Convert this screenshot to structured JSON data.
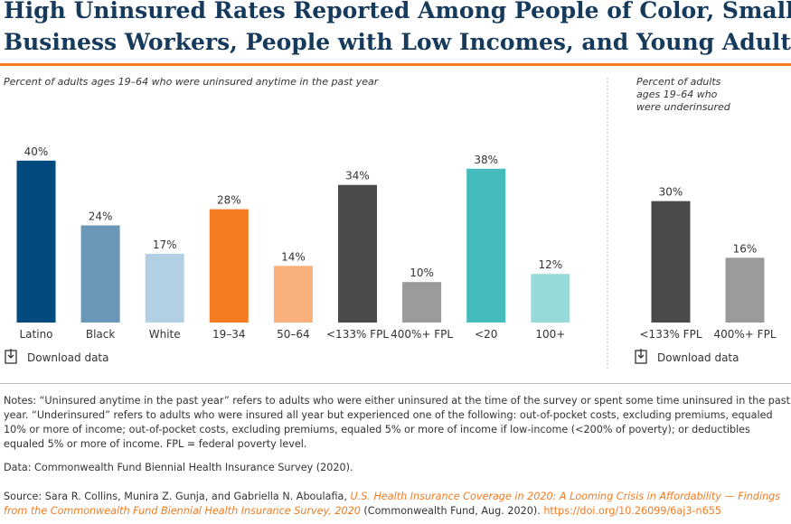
{
  "title": [
    "High Uninsured Rates Reported Among People of Color, Small-",
    "Business Workers, People with Low Incomes, and Young Adults"
  ],
  "chart_data": [
    {
      "type": "bar",
      "subtitle": [
        "Percent of adults ages 19–64 who were uninsured anytime in the past year"
      ],
      "categories": [
        "Latino",
        "Black",
        "White",
        "19–34",
        "50–64",
        "<133% FPL",
        "400%+ FPL",
        "<20",
        "100+"
      ],
      "values": [
        40,
        24,
        17,
        28,
        14,
        34,
        10,
        38,
        12
      ],
      "value_labels": [
        "40%",
        "24%",
        "17%",
        "28%",
        "14%",
        "34%",
        "10%",
        "38%",
        "12%"
      ],
      "colors": [
        "#034a7e",
        "#6a97b8",
        "#b3cfe3",
        "#f47b20",
        "#f9b07a",
        "#4a4a4a",
        "#9b9b9b",
        "#44bbbc",
        "#98dad9"
      ]
    },
    {
      "type": "bar",
      "subtitle": [
        "Percent of adults",
        "ages 19–64 who",
        "were underinsured"
      ],
      "categories": [
        "<133% FPL",
        "400%+ FPL"
      ],
      "values": [
        30,
        16
      ],
      "value_labels": [
        "30%",
        "16%"
      ],
      "colors": [
        "#4a4a4a",
        "#9b9b9b"
      ]
    }
  ],
  "download_links": [
    "Download data",
    "Download data"
  ],
  "notes": "Notes: “Uninsured anytime in the past year” refers to adults who were either uninsured at the time of the survey or spent some time uninsured in the past year. “Underinsured” refers to adults who were insured all year but experienced one of the following: out-of-pocket costs, excluding premiums, equaled 10% or more of income; out-of-pocket costs, excluding premiums, equaled 5% or more of income if low-income (<200% of poverty); or deductibles equaled 5% or more of income. FPL = federal poverty level.",
  "data_source": "Data: Commonwealth Fund Biennial Health Insurance Survey (2020).",
  "source": [
    "Source: Sara R. Collins, Munira Z. Gunja, and Gabriella N. Aboulafia, ",
    "U.S. Health Insurance Coverage in 2020: A Looming Crisis in Affordability — Findings from the Commonwealth Fund Biennial Health Insurance Survey, 2020",
    " (Commonwealth Fund, Aug. 2020). ",
    "https://doi.org/10.26099/6aj3-n655"
  ]
}
